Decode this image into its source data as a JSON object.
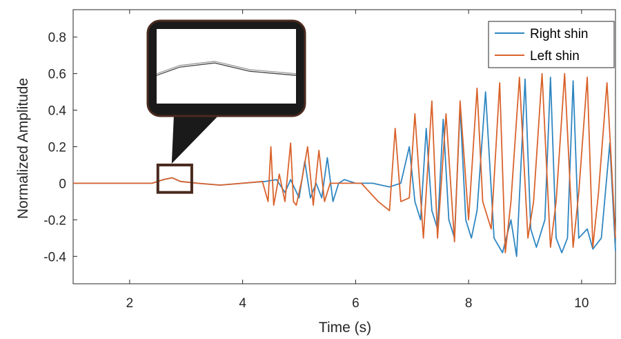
{
  "chart_data": {
    "type": "line",
    "title": "",
    "xlabel": "Time (s)",
    "ylabel": "Normalized Amplitude",
    "xlim": [
      1,
      10.6
    ],
    "ylim": [
      -0.55,
      0.95
    ],
    "xticks": [
      2,
      4,
      6,
      8,
      10
    ],
    "yticks": [
      -0.4,
      -0.2,
      0,
      0.2,
      0.4,
      0.6,
      0.8
    ],
    "xtick_labels": [
      "2",
      "4",
      "6",
      "8",
      "10"
    ],
    "ytick_labels": [
      "-0.4",
      "-0.2",
      "0",
      "0.2",
      "0.4",
      "0.6",
      "0.8"
    ],
    "grid": false,
    "legend_position": "top-right",
    "colors": {
      "right": "#2e86c1",
      "left": "#d9622b",
      "zoom_frame": "#4a2a1e",
      "callout": "#1a1a1a"
    },
    "series": [
      {
        "name": "Right shin",
        "x": [
          1.0,
          2.4,
          2.6,
          2.75,
          2.9,
          3.2,
          3.6,
          4.0,
          4.4,
          4.6,
          4.75,
          4.85,
          5.0,
          5.1,
          5.2,
          5.3,
          5.4,
          5.5,
          5.6,
          5.7,
          5.8,
          6.0,
          6.3,
          6.6,
          6.8,
          6.95,
          7.05,
          7.15,
          7.25,
          7.35,
          7.45,
          7.55,
          7.65,
          7.75,
          7.85,
          7.95,
          8.05,
          8.15,
          8.3,
          8.45,
          8.6,
          8.75,
          8.85,
          9.0,
          9.1,
          9.2,
          9.35,
          9.45,
          9.55,
          9.65,
          9.75,
          9.85,
          9.95,
          10.1,
          10.2,
          10.35,
          10.5,
          10.6
        ],
        "y": [
          0.0,
          0.0,
          0.02,
          0.03,
          0.01,
          0.0,
          -0.01,
          0.0,
          0.01,
          0.02,
          -0.05,
          0.02,
          -0.08,
          0.12,
          -0.08,
          0.0,
          -0.08,
          0.14,
          -0.1,
          0.0,
          0.02,
          0.0,
          0.0,
          -0.02,
          0.0,
          0.2,
          -0.1,
          -0.2,
          0.3,
          -0.15,
          -0.25,
          0.35,
          -0.2,
          -0.3,
          0.42,
          -0.2,
          -0.3,
          -0.15,
          0.5,
          -0.3,
          -0.38,
          -0.2,
          -0.4,
          0.57,
          -0.25,
          -0.35,
          -0.2,
          0.58,
          -0.3,
          -0.38,
          -0.3,
          0.56,
          -0.3,
          -0.25,
          -0.36,
          -0.3,
          0.22,
          -0.37
        ]
      },
      {
        "name": "Left shin",
        "x": [
          1.0,
          2.4,
          2.6,
          2.75,
          2.9,
          3.2,
          3.6,
          4.0,
          4.35,
          4.45,
          4.5,
          4.55,
          4.65,
          4.75,
          4.85,
          4.9,
          4.95,
          5.05,
          5.15,
          5.25,
          5.35,
          5.45,
          5.55,
          5.8,
          6.1,
          6.4,
          6.6,
          6.7,
          6.8,
          6.95,
          7.05,
          7.2,
          7.35,
          7.45,
          7.6,
          7.75,
          7.85,
          8.0,
          8.15,
          8.25,
          8.4,
          8.55,
          8.65,
          8.75,
          8.9,
          9.05,
          9.15,
          9.3,
          9.45,
          9.55,
          9.7,
          9.85,
          9.95,
          10.1,
          10.2,
          10.3,
          10.45,
          10.6
        ],
        "y": [
          0.0,
          0.0,
          0.02,
          0.03,
          0.01,
          0.0,
          -0.01,
          0.0,
          0.01,
          -0.1,
          0.2,
          -0.12,
          0.05,
          -0.1,
          0.22,
          -0.1,
          -0.12,
          0.02,
          0.2,
          -0.12,
          0.18,
          -0.1,
          0.0,
          0.0,
          0.0,
          -0.1,
          -0.15,
          0.3,
          -0.1,
          -0.08,
          0.38,
          -0.3,
          0.45,
          -0.3,
          0.38,
          -0.32,
          0.45,
          -0.2,
          0.52,
          -0.1,
          -0.25,
          0.55,
          -0.38,
          -0.1,
          0.58,
          -0.3,
          -0.1,
          0.6,
          -0.35,
          -0.1,
          0.6,
          -0.35,
          -0.05,
          0.58,
          -0.35,
          -0.05,
          0.55,
          -0.3
        ]
      }
    ]
  },
  "legend": {
    "items": [
      "Right shin",
      "Left shin"
    ]
  }
}
